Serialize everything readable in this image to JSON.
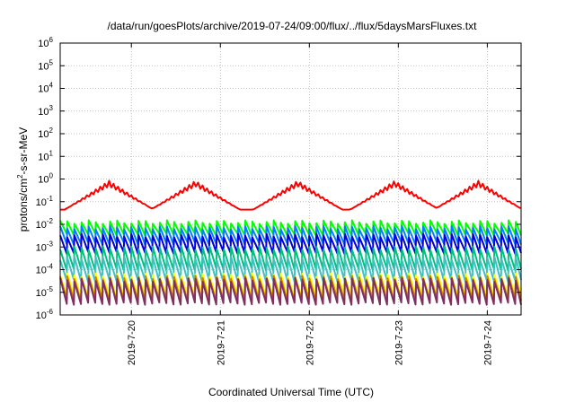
{
  "chart_data": {
    "type": "line",
    "title": "/data/run/goesPlots/archive/2019-07-24/09:00/flux/../flux/5daysMarsFluxes.txt",
    "xlabel": "Coordinated Universal Time (UTC)",
    "ylabel_base": "protons/cm",
    "ylabel_sup": "2",
    "ylabel_rest": "-s-sr-MeV",
    "y_scale": "log",
    "ylim_exp": [
      -6,
      6
    ],
    "y_tick_exps": [
      -6,
      -5,
      -4,
      -3,
      -2,
      -1,
      0,
      1,
      2,
      3,
      4,
      5,
      6
    ],
    "xlim_days": [
      19.2,
      24.38
    ],
    "x_ticks": [
      {
        "label": "2019-7-20",
        "day": 20
      },
      {
        "label": "2019-7-21",
        "day": 21
      },
      {
        "label": "2019-7-22",
        "day": 22
      },
      {
        "label": "2019-7-23",
        "day": 23
      },
      {
        "label": "2019-7-24",
        "day": 24
      }
    ],
    "grid": true,
    "legend": "none",
    "series": [
      {
        "color": "#ff0000",
        "x_start": 19.2,
        "x_end": 24.38,
        "step": 0.05,
        "pattern": "slow",
        "base_log": -1.1,
        "amp_log": 0.9,
        "peaks": [
          19.75,
          20.72,
          21.87,
          22.96,
          23.9
        ],
        "period": 0.12
      },
      {
        "color": "#00ff00",
        "x_start": 19.2,
        "x_end": 24.38,
        "step": 0.08,
        "pattern": "saw",
        "base_log": -2.45,
        "amp_log": 0.55
      },
      {
        "color": "#0080ff",
        "x_start": 19.2,
        "x_end": 24.38,
        "step": 0.08,
        "pattern": "saw",
        "base_log": -2.85,
        "amp_log": 0.7
      },
      {
        "color": "#0000dd",
        "x_start": 19.2,
        "x_end": 24.38,
        "step": 0.08,
        "pattern": "saw",
        "base_log": -3.25,
        "amp_log": 0.75
      },
      {
        "color": "#00c080",
        "x_start": 19.2,
        "x_end": 24.38,
        "step": 0.08,
        "pattern": "saw",
        "base_log": -4.0,
        "amp_log": 0.95
      },
      {
        "color": "#40c0c0",
        "x_start": 19.2,
        "x_end": 24.38,
        "step": 0.08,
        "pattern": "saw",
        "base_log": -4.5,
        "amp_log": 1.0
      },
      {
        "color": "#ffff00",
        "x_start": 19.2,
        "x_end": 24.38,
        "step": 0.08,
        "pattern": "saw",
        "base_log": -5.15,
        "amp_log": 0.9
      },
      {
        "color": "#d08000",
        "x_start": 19.2,
        "x_end": 24.38,
        "step": 0.08,
        "pattern": "saw",
        "base_log": -5.35,
        "amp_log": 1.0
      },
      {
        "color": "#803060",
        "x_start": 19.2,
        "x_end": 24.38,
        "step": 0.08,
        "pattern": "saw",
        "base_log": -5.5,
        "amp_log": 1.05
      }
    ]
  }
}
